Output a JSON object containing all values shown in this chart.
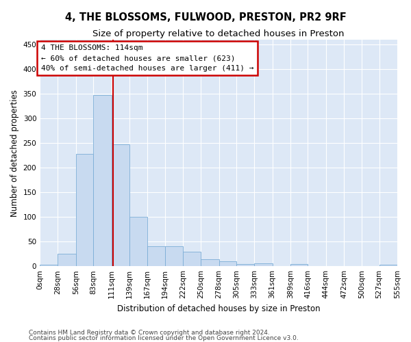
{
  "title": "4, THE BLOSSOMS, FULWOOD, PRESTON, PR2 9RF",
  "subtitle": "Size of property relative to detached houses in Preston",
  "xlabel": "Distribution of detached houses by size in Preston",
  "ylabel": "Number of detached properties",
  "footnote1": "Contains HM Land Registry data © Crown copyright and database right 2024.",
  "footnote2": "Contains public sector information licensed under the Open Government Licence v3.0.",
  "bar_color": "#c8daf0",
  "bar_edge_color": "#7badd6",
  "bg_color": "#dde8f6",
  "fig_color": "#ffffff",
  "grid_color": "#ffffff",
  "marker_line_color": "#cc0000",
  "annotation_box_color": "#cc0000",
  "bin_edges": [
    0,
    28,
    56,
    83,
    111,
    139,
    167,
    194,
    222,
    250,
    278,
    305,
    333,
    361,
    389,
    416,
    444,
    472,
    500,
    527,
    555
  ],
  "bin_counts": [
    3,
    25,
    228,
    347,
    247,
    100,
    41,
    40,
    30,
    14,
    10,
    4,
    6,
    0,
    4,
    0,
    0,
    0,
    0,
    3
  ],
  "marker_value": 114,
  "annotation_lines": [
    "4 THE BLOSSOMS: 114sqm",
    "← 60% of detached houses are smaller (623)",
    "40% of semi-detached houses are larger (411) →"
  ],
  "ylim": [
    0,
    460
  ],
  "yticks": [
    0,
    50,
    100,
    150,
    200,
    250,
    300,
    350,
    400,
    450
  ],
  "title_fontsize": 10.5,
  "subtitle_fontsize": 9.5,
  "axis_label_fontsize": 8.5,
  "tick_fontsize": 7.5,
  "annotation_fontsize": 8
}
